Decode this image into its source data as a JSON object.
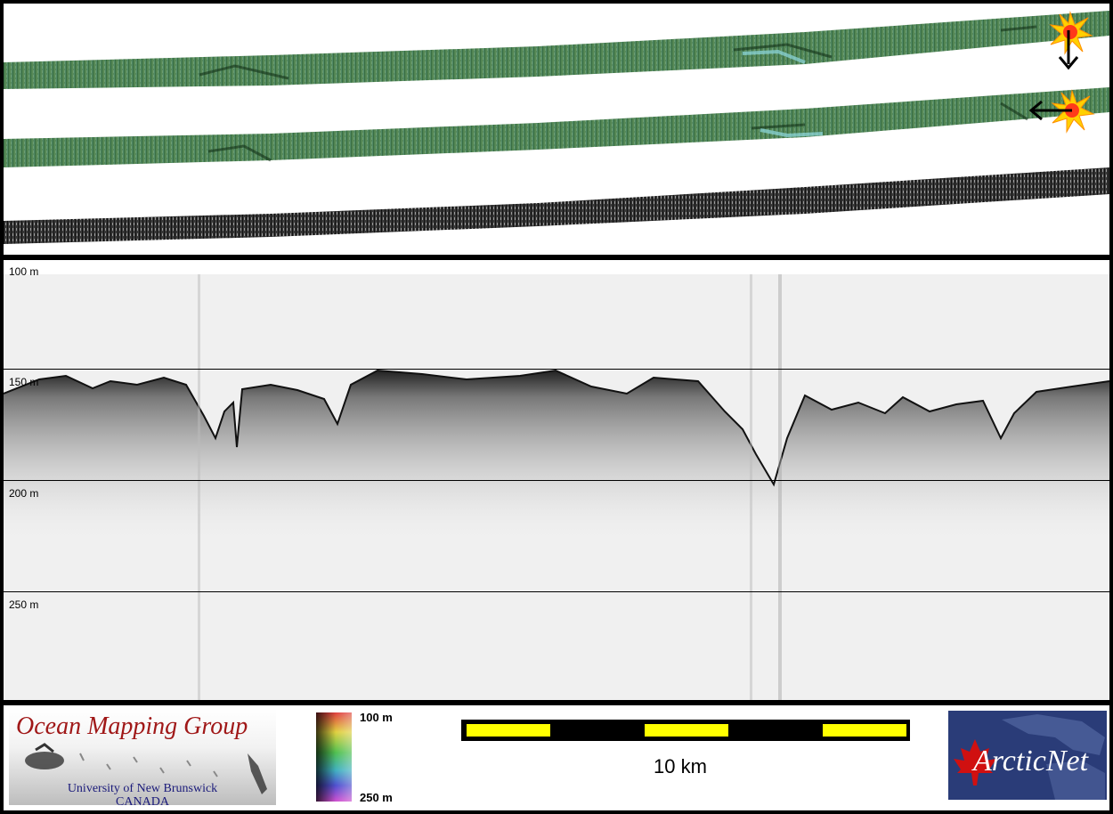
{
  "profile": {
    "depth_labels": [
      "100 m",
      "150 m",
      "200 m",
      "250 m"
    ]
  },
  "legend": {
    "omg_title": "Ocean Mapping Group",
    "omg_university": "University of New Brunswick",
    "omg_country": "CANADA",
    "colorbar_top": "100 m",
    "colorbar_bottom": "250 m",
    "scale_label": "10 km",
    "arcticnet_text": "ArcticNet"
  },
  "colors": {
    "swath_green": "#4f7f55",
    "scalebar_fill": "#ffff00",
    "omg_red": "#a01818",
    "arctic_blue": "#2a3c78",
    "arctic_leaf": "#d01010"
  },
  "icons": [
    "sun-marker-icon",
    "arrow-down-icon",
    "arrow-left-icon",
    "maple-leaf-icon"
  ]
}
